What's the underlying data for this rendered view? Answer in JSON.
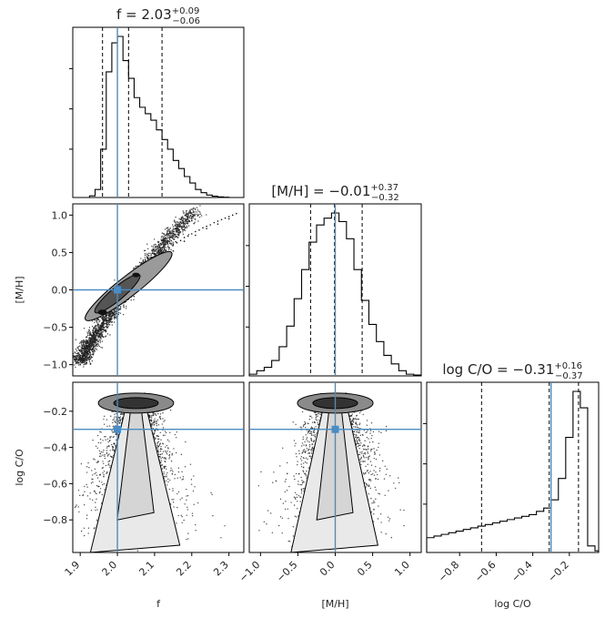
{
  "chart_data": {
    "type": "corner",
    "parameters": [
      {
        "name": "f",
        "label": "f",
        "range": [
          1.88,
          2.34
        ],
        "ticks": [
          1.9,
          2.0,
          2.1,
          2.2,
          2.3
        ],
        "tick_labels": [
          "1.9",
          "2.0",
          "2.1",
          "2.2",
          "2.3"
        ],
        "truth": 2.0
      },
      {
        "name": "mh",
        "label": "[M/H]",
        "range": [
          -1.15,
          1.15
        ],
        "ticks": [
          -1.0,
          -0.5,
          0.0,
          0.5,
          1.0
        ],
        "tick_labels": [
          "−1.0",
          "−0.5",
          "0.0",
          "0.5",
          "1.0"
        ],
        "truth": 0.0
      },
      {
        "name": "logco",
        "label": "log C/O",
        "range": [
          -0.98,
          -0.04
        ],
        "ticks": [
          -0.8,
          -0.6,
          -0.4,
          -0.2
        ],
        "tick_labels": [
          "−0.8",
          "−0.6",
          "−0.4",
          "−0.2"
        ],
        "truth": -0.3
      }
    ],
    "titles": [
      {
        "prefix": "f = 2.03",
        "sup": "+0.09",
        "sub": "−0.06"
      },
      {
        "prefix": "[M/H]  = −0.01",
        "sup": "+0.37",
        "sub": "−0.32"
      },
      {
        "prefix": "log C/O = −0.31",
        "sup": "+0.16",
        "sub": "−0.37"
      }
    ],
    "ylabels": [
      "[M/H]",
      "log C/O"
    ],
    "y_tick_labels": {
      "mh": [
        "−1.0",
        "−0.5",
        "0.0",
        "0.5",
        "1.0"
      ],
      "logco": [
        "−0.8",
        "−0.6",
        "−0.4",
        "−0.2"
      ]
    },
    "quantiles": {
      "f": [
        1.96,
        2.03,
        2.12
      ],
      "mh": [
        -0.33,
        -0.01,
        0.36
      ],
      "logco": [
        -0.68,
        -0.31,
        -0.15
      ]
    },
    "histograms": {
      "f": {
        "edges": [
          1.88,
          1.895,
          1.91,
          1.925,
          1.94,
          1.955,
          1.97,
          1.985,
          2.0,
          2.015,
          2.03,
          2.045,
          2.06,
          2.075,
          2.09,
          2.105,
          2.12,
          2.135,
          2.15,
          2.165,
          2.18,
          2.195,
          2.21,
          2.225,
          2.24,
          2.255,
          2.27,
          2.285,
          2.3,
          2.315,
          2.34
        ],
        "counts": [
          0,
          0,
          0,
          0.01,
          0.05,
          0.3,
          0.78,
          0.96,
          1.0,
          0.85,
          0.74,
          0.62,
          0.56,
          0.52,
          0.48,
          0.42,
          0.36,
          0.3,
          0.23,
          0.18,
          0.13,
          0.09,
          0.05,
          0.03,
          0.015,
          0.008,
          0.004,
          0.002,
          0,
          0
        ]
      },
      "mh": {
        "edges": [
          -1.15,
          -1.05,
          -0.95,
          -0.85,
          -0.75,
          -0.65,
          -0.55,
          -0.45,
          -0.35,
          -0.25,
          -0.15,
          -0.05,
          0.05,
          0.15,
          0.25,
          0.35,
          0.45,
          0.55,
          0.65,
          0.75,
          0.85,
          0.95,
          1.05,
          1.15
        ],
        "counts": [
          0.01,
          0.03,
          0.05,
          0.09,
          0.17,
          0.29,
          0.45,
          0.62,
          0.78,
          0.88,
          0.92,
          0.95,
          0.9,
          0.8,
          0.62,
          0.44,
          0.3,
          0.2,
          0.12,
          0.07,
          0.03,
          0.01,
          0.005
        ]
      },
      "logco": {
        "edges": [
          -0.98,
          -0.94,
          -0.9,
          -0.86,
          -0.82,
          -0.78,
          -0.74,
          -0.7,
          -0.66,
          -0.62,
          -0.58,
          -0.54,
          -0.5,
          -0.46,
          -0.42,
          -0.38,
          -0.34,
          -0.3,
          -0.26,
          -0.22,
          -0.18,
          -0.14,
          -0.1,
          -0.06,
          -0.04
        ],
        "counts": [
          0.09,
          0.1,
          0.11,
          0.12,
          0.13,
          0.14,
          0.15,
          0.16,
          0.17,
          0.18,
          0.19,
          0.2,
          0.21,
          0.22,
          0.23,
          0.25,
          0.27,
          0.32,
          0.45,
          0.7,
          0.98,
          0.88,
          0.04,
          0.01
        ]
      }
    },
    "scatter_points": {
      "f_vs_mh": {
        "x": [
          1.92,
          1.93,
          1.94,
          1.95,
          1.96,
          1.97,
          1.98,
          1.99,
          2.0,
          2.01,
          2.02,
          2.03,
          2.04,
          2.05,
          2.06,
          2.07,
          2.08,
          2.09,
          2.1,
          2.11,
          2.12,
          2.13,
          2.14,
          2.15,
          2.16,
          2.17,
          2.18,
          2.19,
          2.2,
          2.21,
          2.22,
          2.23,
          2.24,
          2.25,
          2.26,
          2.27,
          2.28,
          2.29,
          2.3,
          2.31,
          2.32,
          1.91,
          1.94,
          1.97,
          2.0,
          2.03,
          2.06,
          2.09,
          2.12,
          2.15,
          2.18,
          2.21,
          2.24,
          2.27,
          2.3
        ],
        "y": [
          -0.85,
          -0.75,
          -0.65,
          -0.55,
          -0.45,
          -0.35,
          -0.25,
          -0.15,
          -0.05,
          0.03,
          0.1,
          0.15,
          0.18,
          0.22,
          0.26,
          0.3,
          0.34,
          0.38,
          0.42,
          0.46,
          0.5,
          0.53,
          0.56,
          0.6,
          0.63,
          0.66,
          0.7,
          0.72,
          0.75,
          0.78,
          0.8,
          0.83,
          0.85,
          0.87,
          0.9,
          0.92,
          0.94,
          0.96,
          0.98,
          1.0,
          1.02,
          -0.95,
          -0.7,
          -0.4,
          -0.2,
          0.0,
          0.2,
          0.3,
          0.45,
          0.52,
          0.65,
          0.73,
          0.82,
          0.88,
          0.95
        ]
      }
    }
  }
}
